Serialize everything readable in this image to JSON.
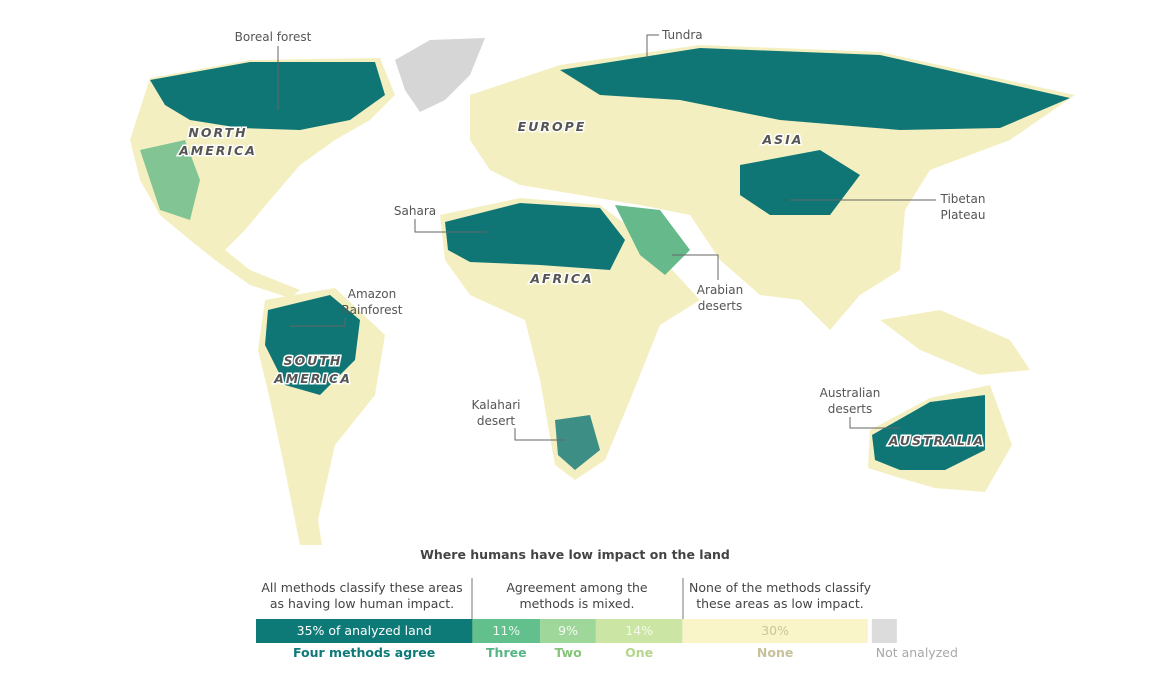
{
  "map": {
    "region_labels": [
      {
        "lines": [
          "NORTH",
          "AMERICA"
        ]
      },
      {
        "lines": [
          "EUROPE"
        ]
      },
      {
        "lines": [
          "ASIA"
        ]
      },
      {
        "lines": [
          "AFRICA"
        ]
      },
      {
        "lines": [
          "SOUTH",
          "AMERICA"
        ]
      },
      {
        "lines": [
          "AUSTRALIA"
        ]
      }
    ],
    "annotations": [
      {
        "lines": [
          "Boreal forest"
        ]
      },
      {
        "lines": [
          "Tundra"
        ]
      },
      {
        "lines": [
          "Sahara"
        ]
      },
      {
        "lines": [
          "Amazon",
          "Rainforest"
        ]
      },
      {
        "lines": [
          "Arabian",
          "deserts"
        ]
      },
      {
        "lines": [
          "Tibetan",
          "Plateau"
        ]
      },
      {
        "lines": [
          "Kalahari",
          "desert"
        ]
      },
      {
        "lines": [
          "Australian",
          "deserts"
        ]
      }
    ]
  },
  "legend": {
    "title": "Where humans have low impact on the land",
    "groups": [
      {
        "lines": [
          "All methods classify these areas",
          "as having low human impact."
        ]
      },
      {
        "lines": [
          "Agreement among the",
          "methods is mixed."
        ]
      },
      {
        "lines": [
          "None of the methods classify",
          "these areas as low impact."
        ]
      }
    ],
    "segments": [
      {
        "name": "Four methods agree",
        "value": 35,
        "value_label": "35% of analyzed land",
        "color": "#0e7a78"
      },
      {
        "name": "Three",
        "value": 11,
        "value_label": "11%",
        "color": "#62c08c"
      },
      {
        "name": "Two",
        "value": 9,
        "value_label": "9%",
        "color": "#9fd79a"
      },
      {
        "name": "One",
        "value": 14,
        "value_label": "14%",
        "color": "#cbe6a4"
      },
      {
        "name": "None",
        "value": 30,
        "value_label": "30%",
        "color": "#faf5c8"
      }
    ],
    "not_analyzed": {
      "name": "Not analyzed",
      "color": "#dcdcdc"
    }
  }
}
